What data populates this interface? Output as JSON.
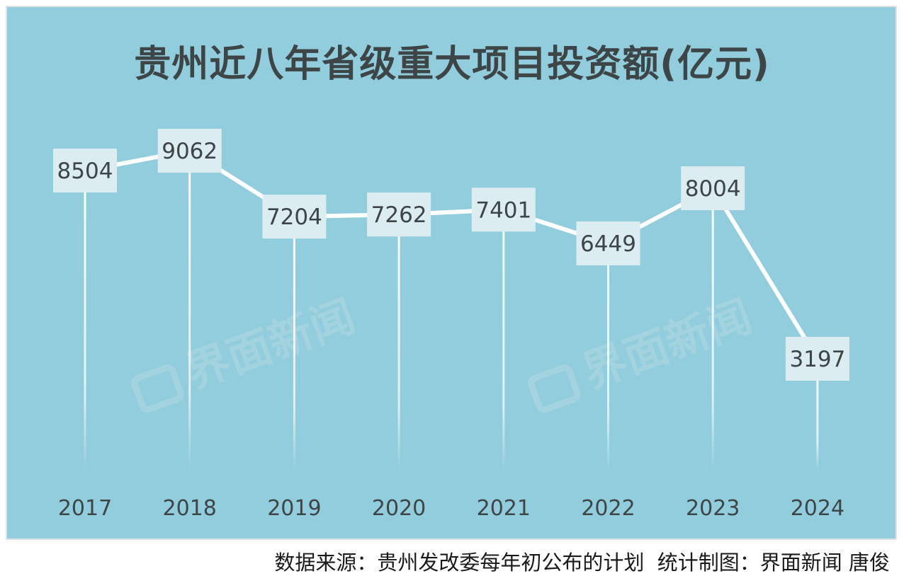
{
  "title": "贵州近八年省级重大项目投资额(亿元)",
  "source_text": "数据来源：贵州发改委每年初公布的计划",
  "credit_text": "统计制图：界面新闻 唐俊",
  "watermark": "界面新闻",
  "colors": {
    "background": "#92cddd",
    "line": "#ffffff",
    "label_box": "#dcedf2",
    "text": "#3d4547"
  },
  "chart_data": {
    "type": "line",
    "categories": [
      "2017",
      "2018",
      "2019",
      "2020",
      "2021",
      "2022",
      "2023",
      "2024"
    ],
    "series": [
      {
        "values": [
          8504,
          9062,
          7204,
          7262,
          7401,
          6449,
          8004,
          3197
        ]
      }
    ],
    "title": "贵州近八年省级重大项目投资额(亿元)",
    "xlabel": "",
    "ylabel": "",
    "grid": false,
    "legend": "none"
  }
}
